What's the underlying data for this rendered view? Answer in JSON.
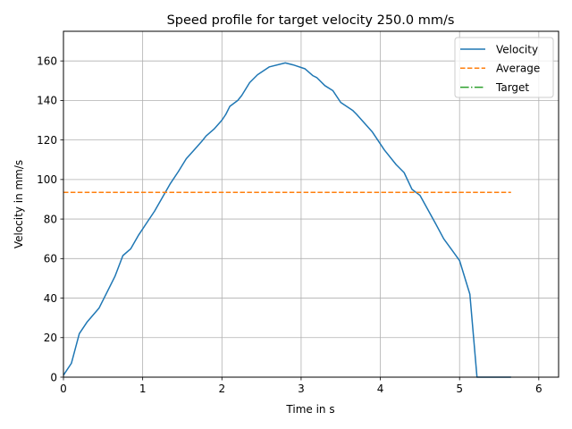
{
  "chart_data": {
    "type": "line",
    "title": "Speed profile for target velocity 250.0 mm/s",
    "xlabel": "Time in s",
    "ylabel": "Velocity in mm/s",
    "xlim": [
      0,
      6.25
    ],
    "ylim": [
      0,
      175
    ],
    "xticks": [
      0,
      1,
      2,
      3,
      4,
      5,
      6
    ],
    "yticks": [
      0,
      20,
      40,
      60,
      80,
      100,
      120,
      140,
      160
    ],
    "grid": true,
    "legend_position": "top-right",
    "series": [
      {
        "name": "Velocity",
        "color": "#1f77b4",
        "dash": "solid",
        "x": [
          0,
          0.1,
          0.2,
          0.3,
          0.45,
          0.55,
          0.65,
          0.75,
          0.85,
          0.95,
          1.05,
          1.15,
          1.25,
          1.35,
          1.45,
          1.55,
          1.65,
          1.75,
          1.8,
          1.9,
          2.0,
          2.05,
          2.1,
          2.2,
          2.25,
          2.35,
          2.45,
          2.6,
          2.8,
          2.9,
          3.05,
          3.15,
          3.2,
          3.3,
          3.4,
          3.5,
          3.65,
          3.7,
          3.9,
          4.05,
          4.2,
          4.3,
          4.4,
          4.5,
          4.7,
          4.8,
          4.9,
          5.0,
          5.13,
          5.22,
          5.4,
          5.65
        ],
        "y": [
          1,
          7,
          22,
          28,
          35,
          43,
          51,
          61.5,
          65,
          72,
          78,
          84,
          91,
          98,
          104,
          110.5,
          115,
          119.5,
          122,
          125.5,
          130,
          133,
          137,
          140,
          142.5,
          149,
          153,
          157,
          159,
          158,
          156,
          152.5,
          151.5,
          147.5,
          145,
          139,
          135,
          133,
          124,
          115,
          107.5,
          103.5,
          95,
          92,
          77.5,
          70,
          64.5,
          59,
          42,
          0,
          0,
          0
        ]
      },
      {
        "name": "Average",
        "color": "#ff7f0e",
        "dash": "dashed",
        "x": [
          0,
          5.65
        ],
        "y": [
          93.5,
          93.5
        ]
      },
      {
        "name": "Target",
        "color": "#2ca02c",
        "dash": "dashdot",
        "x": [],
        "y": []
      }
    ]
  }
}
